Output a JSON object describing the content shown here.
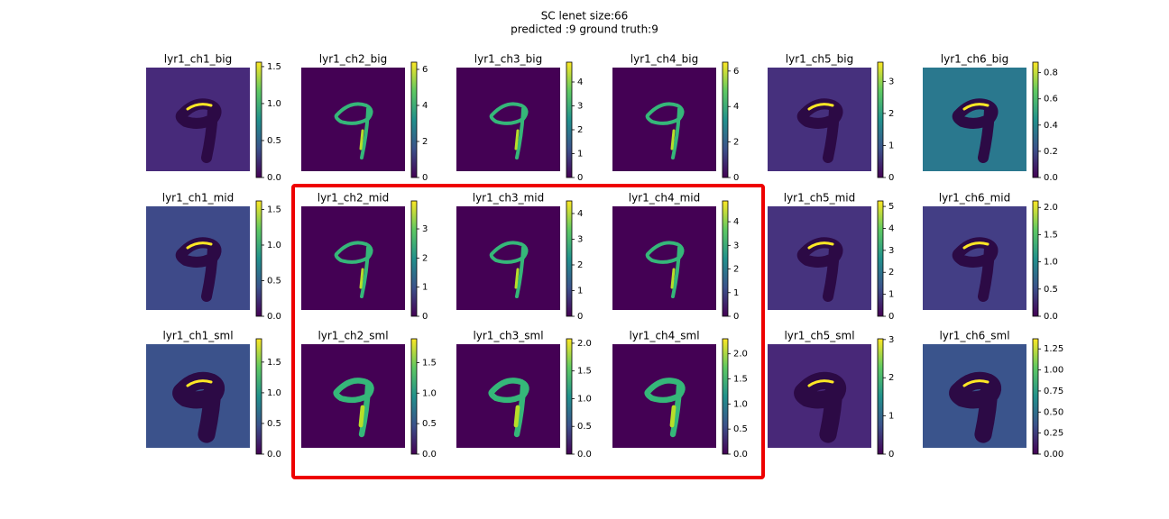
{
  "title": "SC lenet size:66",
  "subtitle": "predicted :9 ground truth:9",
  "panels": [
    {
      "title": "lyr1_ch1_big",
      "bg": "#472a7a",
      "clim": [
        0,
        1.56
      ],
      "ticks": [
        {
          "value": 0,
          "label": "0.0"
        },
        {
          "value": 0.5,
          "label": "0.5"
        },
        {
          "value": 1,
          "label": "1.0"
        },
        {
          "value": 1.5,
          "label": "1.5"
        }
      ]
    },
    {
      "title": "lyr1_ch2_big",
      "bg": "#440154",
      "clim": [
        0,
        6.4
      ],
      "ticks": [
        0,
        2,
        4,
        6
      ]
    },
    {
      "title": "lyr1_ch3_big",
      "bg": "#440154",
      "clim": [
        0,
        4.83
      ],
      "ticks": [
        0,
        1,
        2,
        3,
        4
      ]
    },
    {
      "title": "lyr1_ch4_big",
      "bg": "#440154",
      "clim": [
        0,
        6.5
      ],
      "ticks": [
        0,
        2,
        4,
        6
      ]
    },
    {
      "title": "lyr1_ch5_big",
      "bg": "#46307d",
      "clim": [
        0,
        3.6
      ],
      "ticks": [
        0,
        1,
        2,
        3
      ]
    },
    {
      "title": "lyr1_ch6_big",
      "bg": "#2a788e",
      "clim": [
        0,
        0.88
      ],
      "ticks": [
        {
          "value": 0,
          "label": "0.0"
        },
        {
          "value": 0.2,
          "label": "0.2"
        },
        {
          "value": 0.4,
          "label": "0.4"
        },
        {
          "value": 0.6,
          "label": "0.6"
        },
        {
          "value": 0.8,
          "label": "0.8"
        }
      ]
    },
    {
      "title": "lyr1_ch1_mid",
      "bg": "#3e4a89",
      "clim": [
        0,
        1.62
      ],
      "ticks": [
        {
          "value": 0,
          "label": "0.0"
        },
        {
          "value": 0.5,
          "label": "0.5"
        },
        {
          "value": 1,
          "label": "1.0"
        },
        {
          "value": 1.5,
          "label": "1.5"
        }
      ]
    },
    {
      "title": "lyr1_ch2_mid",
      "bg": "#440154",
      "clim": [
        0,
        3.96
      ],
      "ticks": [
        0,
        1,
        2,
        3
      ]
    },
    {
      "title": "lyr1_ch3_mid",
      "bg": "#440154",
      "clim": [
        0,
        4.49
      ],
      "ticks": [
        0,
        1,
        2,
        3,
        4
      ]
    },
    {
      "title": "lyr1_ch4_mid",
      "bg": "#440154",
      "clim": [
        0,
        4.88
      ],
      "ticks": [
        0,
        1,
        2,
        3,
        4
      ]
    },
    {
      "title": "lyr1_ch5_mid",
      "bg": "#46337e",
      "clim": [
        0,
        5.25
      ],
      "ticks": [
        0,
        1,
        2,
        3,
        4,
        5
      ]
    },
    {
      "title": "lyr1_ch6_mid",
      "bg": "#433e85",
      "clim": [
        0,
        2.12
      ],
      "ticks": [
        {
          "value": 0,
          "label": "0.0"
        },
        {
          "value": 0.5,
          "label": "0.5"
        },
        {
          "value": 1,
          "label": "1.0"
        },
        {
          "value": 1.5,
          "label": "1.5"
        },
        {
          "value": 2,
          "label": "2.0"
        }
      ]
    },
    {
      "title": "lyr1_ch1_sml",
      "bg": "#3b528b",
      "clim": [
        0,
        1.88
      ],
      "ticks": [
        {
          "value": 0,
          "label": "0.0"
        },
        {
          "value": 0.5,
          "label": "0.5"
        },
        {
          "value": 1,
          "label": "1.0"
        },
        {
          "value": 1.5,
          "label": "1.5"
        }
      ]
    },
    {
      "title": "lyr1_ch2_sml",
      "bg": "#440154",
      "clim": [
        0,
        1.89
      ],
      "ticks": [
        {
          "value": 0,
          "label": "0.0"
        },
        {
          "value": 0.5,
          "label": "0.5"
        },
        {
          "value": 1,
          "label": "1.0"
        },
        {
          "value": 1.5,
          "label": "1.5"
        }
      ]
    },
    {
      "title": "lyr1_ch3_sml",
      "bg": "#440154",
      "clim": [
        0,
        2.08
      ],
      "ticks": [
        {
          "value": 0,
          "label": "0.0"
        },
        {
          "value": 0.5,
          "label": "0.5"
        },
        {
          "value": 1,
          "label": "1.0"
        },
        {
          "value": 1.5,
          "label": "1.5"
        },
        {
          "value": 2,
          "label": "2.0"
        }
      ]
    },
    {
      "title": "lyr1_ch4_sml",
      "bg": "#440154",
      "clim": [
        0,
        2.3
      ],
      "ticks": [
        {
          "value": 0,
          "label": "0.0"
        },
        {
          "value": 0.5,
          "label": "0.5"
        },
        {
          "value": 1,
          "label": "1.0"
        },
        {
          "value": 1.5,
          "label": "1.5"
        },
        {
          "value": 2,
          "label": "2.0"
        }
      ]
    },
    {
      "title": "lyr1_ch5_sml",
      "bg": "#482878",
      "clim": [
        0,
        3.02
      ],
      "ticks": [
        0,
        1,
        2,
        3
      ]
    },
    {
      "title": "lyr1_ch6_sml",
      "bg": "#3a548c",
      "clim": [
        0,
        1.37
      ],
      "ticks": [
        {
          "value": 0,
          "label": "0.00"
        },
        {
          "value": 0.25,
          "label": "0.25"
        },
        {
          "value": 0.5,
          "label": "0.50"
        },
        {
          "value": 0.75,
          "label": "0.75"
        },
        {
          "value": 1,
          "label": "1.00"
        },
        {
          "value": 1.25,
          "label": "1.25"
        }
      ]
    }
  ]
}
